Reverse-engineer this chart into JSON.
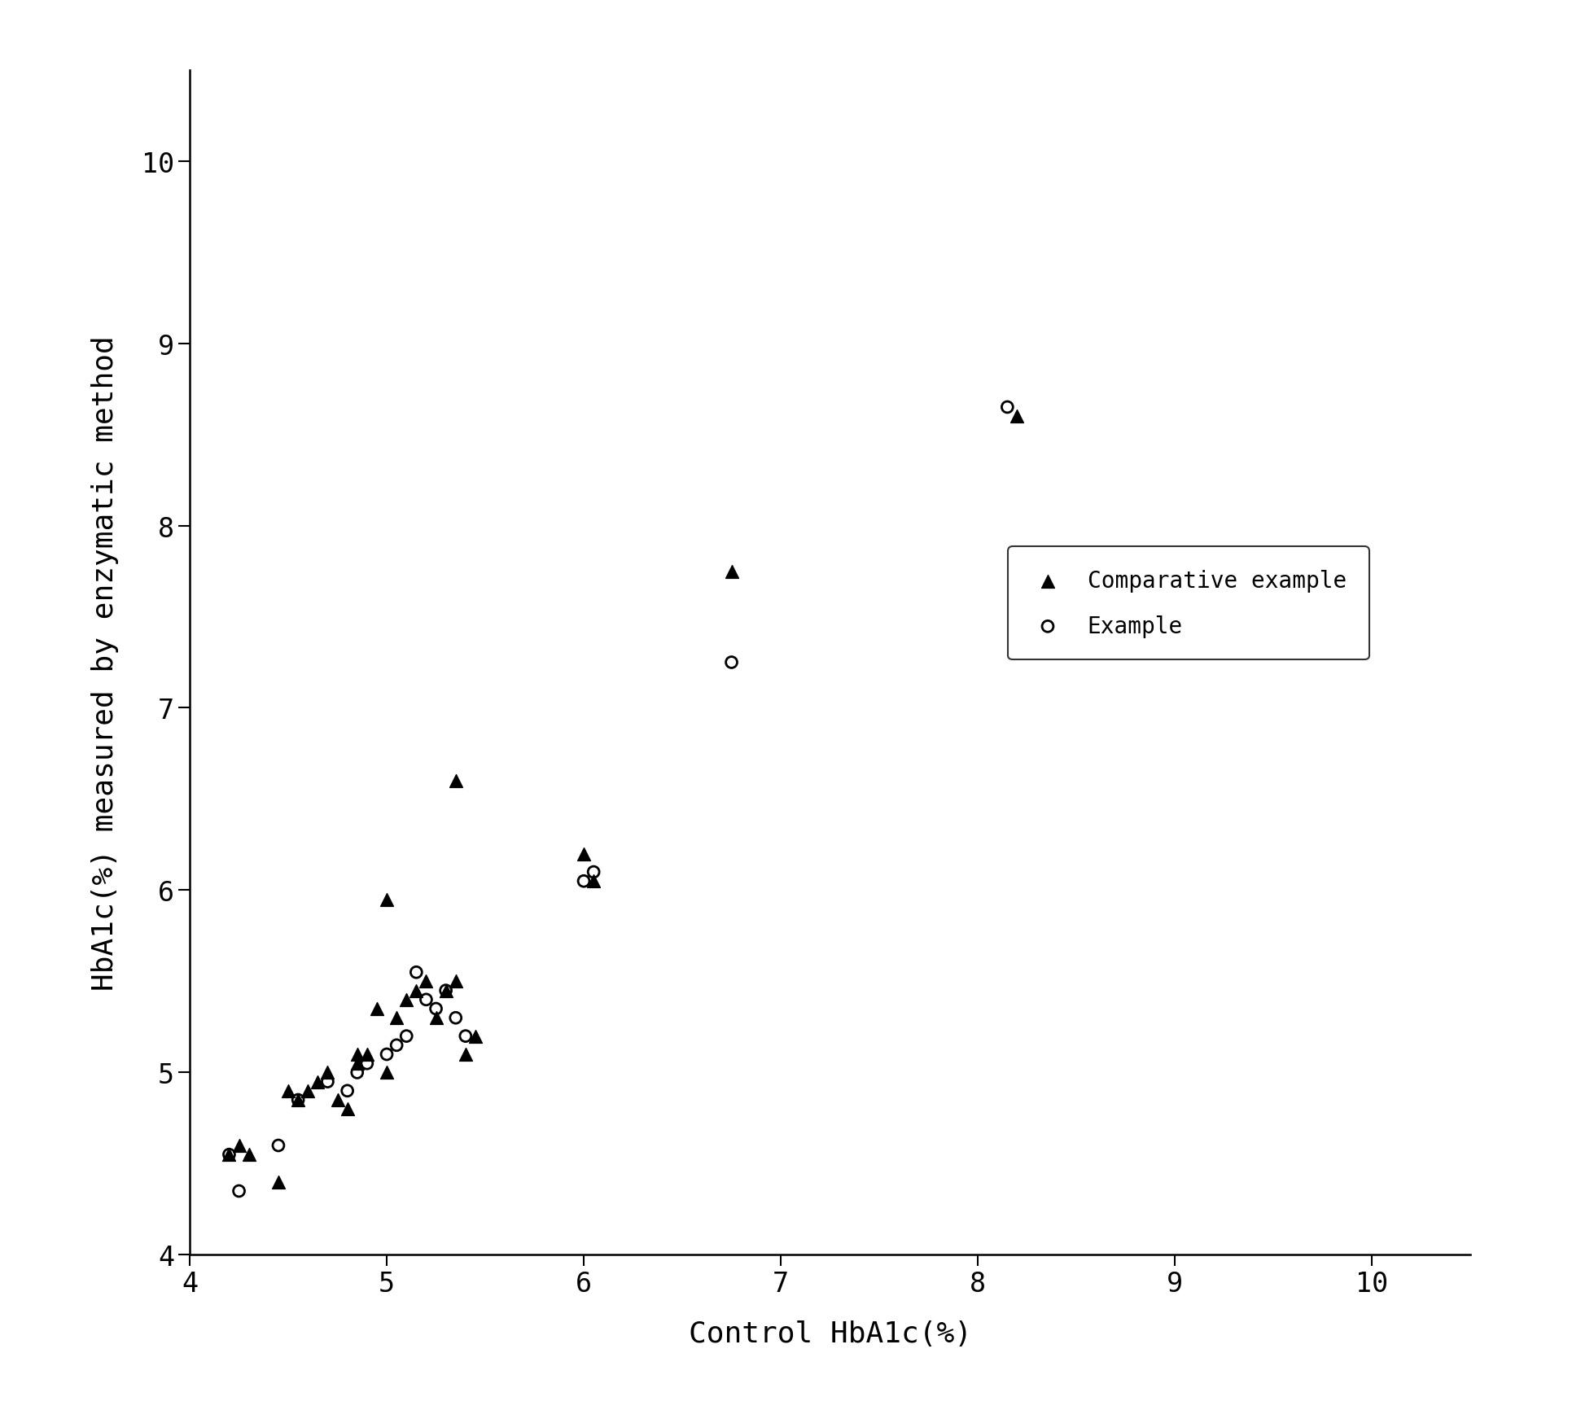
{
  "title": "",
  "xlabel": "Control HbA1c(%)",
  "ylabel": "HbA1c(%) measured by enzymatic method",
  "xlim": [
    4.0,
    10.5
  ],
  "ylim": [
    4.0,
    10.5
  ],
  "xticks": [
    4,
    5,
    6,
    7,
    8,
    9,
    10
  ],
  "yticks": [
    4,
    5,
    6,
    7,
    8,
    9,
    10
  ],
  "background_color": "#ffffff",
  "comparative_x": [
    4.2,
    4.25,
    4.3,
    4.45,
    4.5,
    4.55,
    4.6,
    4.65,
    4.7,
    4.75,
    4.8,
    4.85,
    4.85,
    4.9,
    4.95,
    5.0,
    5.05,
    5.1,
    5.15,
    5.2,
    5.25,
    5.3,
    5.35,
    5.4,
    5.45,
    5.0,
    5.35,
    6.0,
    6.05,
    6.75,
    8.2
  ],
  "comparative_y": [
    4.55,
    4.6,
    4.55,
    4.4,
    4.9,
    4.85,
    4.9,
    4.95,
    5.0,
    4.85,
    4.8,
    5.05,
    5.1,
    5.1,
    5.35,
    5.0,
    5.3,
    5.4,
    5.45,
    5.5,
    5.3,
    5.45,
    5.5,
    5.1,
    5.2,
    5.95,
    6.6,
    6.2,
    6.05,
    7.75,
    8.6
  ],
  "example_x": [
    4.2,
    4.25,
    4.45,
    4.55,
    4.7,
    4.8,
    4.85,
    4.9,
    5.0,
    5.05,
    5.1,
    5.15,
    5.2,
    5.25,
    5.3,
    5.35,
    5.4,
    6.0,
    6.05,
    6.75,
    8.15
  ],
  "example_y": [
    4.55,
    4.35,
    4.6,
    4.85,
    4.95,
    4.9,
    5.0,
    5.05,
    5.1,
    5.15,
    5.2,
    5.55,
    5.4,
    5.35,
    5.45,
    5.3,
    5.2,
    6.05,
    6.1,
    7.25,
    8.65
  ],
  "legend_labels": [
    "Comparative example",
    "Example"
  ],
  "marker_size_tri": 130,
  "marker_size_circ": 100,
  "font_family": "monospace",
  "tick_fontsize": 24,
  "label_fontsize": 26,
  "legend_fontsize": 20
}
